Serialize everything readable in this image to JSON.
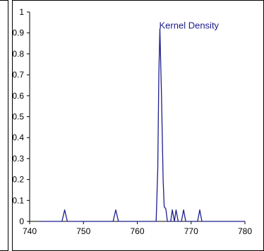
{
  "chart_data": {
    "type": "line",
    "series": [
      {
        "name": "Kernel Density",
        "color": "#1f1f8f",
        "points": [
          [
            742,
            0
          ],
          [
            746.0,
            0
          ],
          [
            746.5,
            0.055
          ],
          [
            747.0,
            0
          ],
          [
            755.5,
            0
          ],
          [
            756.0,
            0.055
          ],
          [
            756.5,
            0
          ],
          [
            763.5,
            0.0
          ],
          [
            763.8,
            0.25
          ],
          [
            764.0,
            0.7
          ],
          [
            764.2,
            0.92
          ],
          [
            764.5,
            0.6
          ],
          [
            764.8,
            0.2
          ],
          [
            765.0,
            0.07
          ],
          [
            765.3,
            0.06
          ],
          [
            765.6,
            0
          ],
          [
            766.2,
            0
          ],
          [
            766.5,
            0.055
          ],
          [
            766.9,
            0.0
          ],
          [
            767.2,
            0.055
          ],
          [
            767.6,
            0
          ],
          [
            768.2,
            0
          ],
          [
            768.6,
            0.055
          ],
          [
            769.0,
            0
          ],
          [
            771.2,
            0
          ],
          [
            771.6,
            0.055
          ],
          [
            772.0,
            0
          ],
          [
            780,
            0
          ]
        ]
      }
    ],
    "xlim": [
      740,
      780
    ],
    "ylim": [
      0,
      1
    ],
    "x_ticks": [
      "740",
      "750",
      "760",
      "770",
      "780"
    ],
    "y_ticks": [
      "0",
      "0.1",
      "0.2",
      "0.3",
      "0.4",
      "0.5",
      "0.6",
      "0.7",
      "0.8",
      "0.9",
      "1"
    ],
    "grid": false
  }
}
